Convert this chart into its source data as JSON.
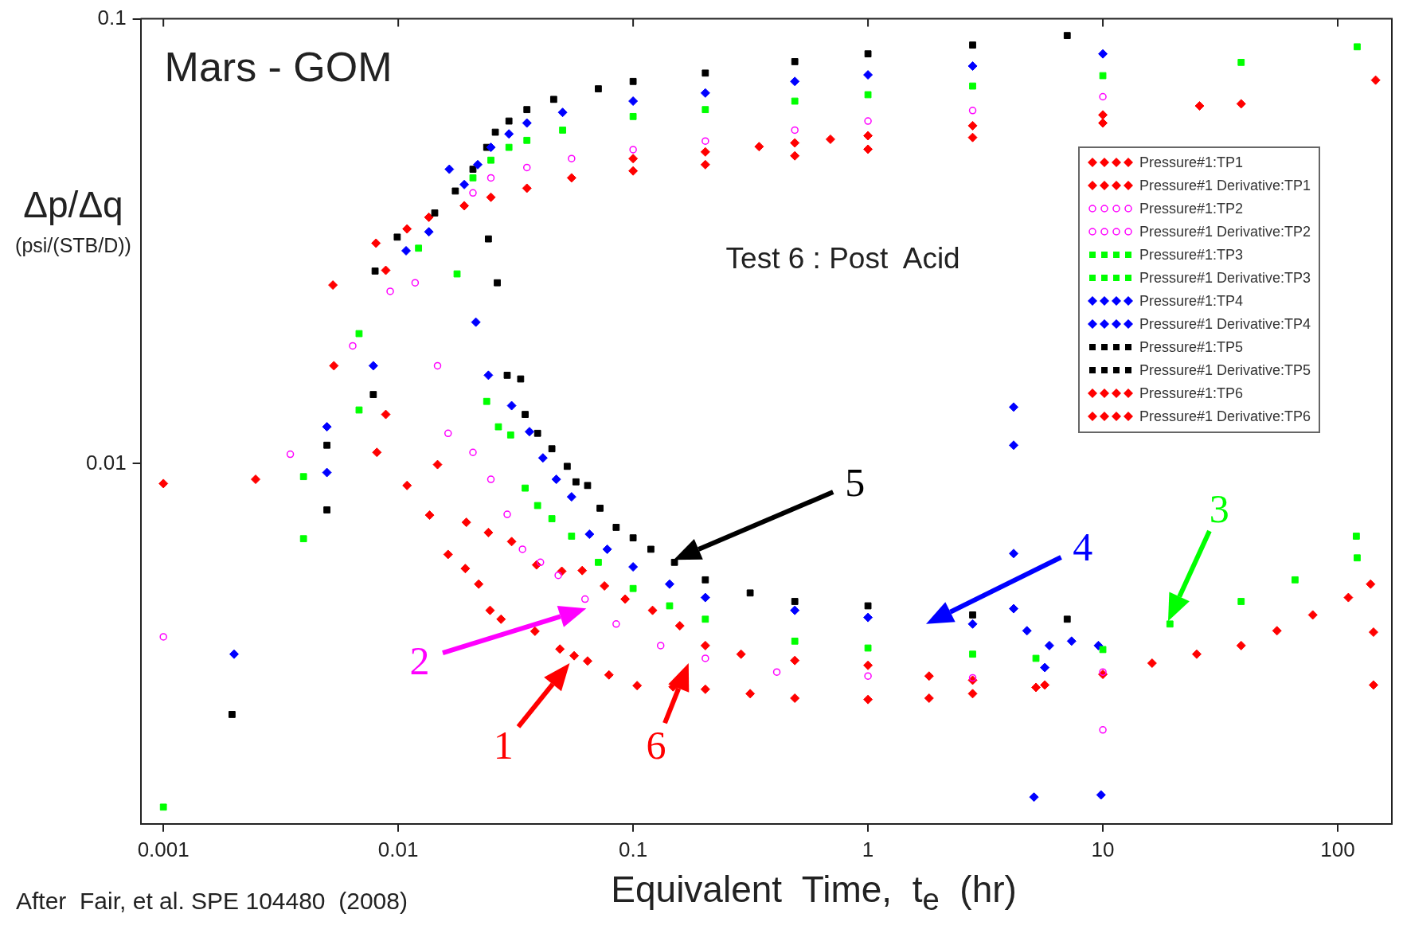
{
  "chart_data": {
    "type": "scatter",
    "xlabel": "Equivalent  Time,  t$_{e}$  (hr)",
    "ylabel": "Δp/Δq (psi/(STB/D))",
    "annotations": [
      "Mars - GOM",
      "Test 6 : Post  Acid",
      "After  Fair, et al. SPE 104480  (2008)",
      "1",
      "2",
      "3",
      "4",
      "5",
      "6"
    ],
    "log": "xy",
    "xlim": [
      0.0008,
      170
    ],
    "ylim": [
      0.00155,
      0.1
    ],
    "xticks": [
      0.001,
      0.01,
      0.1,
      1,
      10,
      100
    ],
    "yticks": [
      0.01,
      0.1
    ],
    "grid": false,
    "legend": "top right",
    "series": [
      {
        "name": "Pressure#1:TP1",
        "color": "#ff0000",
        "marker": "diamond",
        "x": [
          0.1,
          0.203,
          0.344,
          0.488,
          0.692,
          1,
          2.79,
          10,
          25.8
        ],
        "values": [
          0.0485,
          0.0502,
          0.0516,
          0.0526,
          0.0536,
          0.0546,
          0.0575,
          0.0608,
          0.0637
        ]
      },
      {
        "name": "Pressure#1 Derivative:TP1",
        "color": "#ff0000",
        "marker": "diamond",
        "x": [
          0.001,
          0.00247,
          0.00532,
          0.00811,
          0.0109,
          0.0136,
          0.0163,
          0.0193,
          0.022,
          0.0246,
          0.0274,
          0.0382,
          0.0488,
          0.0561,
          0.064,
          0.0789,
          0.104,
          0.148,
          0.203,
          0.315,
          0.488,
          1,
          1.82,
          2.79,
          5.19
        ],
        "values": [
          0.00902,
          0.00922,
          0.0166,
          0.0106,
          0.00893,
          0.00766,
          0.00625,
          0.00581,
          0.00536,
          0.00468,
          0.00447,
          0.0042,
          0.00383,
          0.0037,
          0.0036,
          0.00335,
          0.00317,
          0.00315,
          0.00311,
          0.00304,
          0.00297,
          0.00295,
          0.00297,
          0.00304,
          0.00314
        ]
      },
      {
        "name": "Pressure#1:TP2",
        "color": "#ff00ff",
        "marker": "circle",
        "x": [
          0.0208,
          0.0248,
          0.0353,
          0.0547,
          0.1,
          0.203,
          0.488,
          1,
          2.79,
          10
        ],
        "values": [
          0.0406,
          0.0439,
          0.0463,
          0.0485,
          0.0508,
          0.0531,
          0.0562,
          0.0589,
          0.0622,
          0.0668
        ]
      },
      {
        "name": "Pressure#1 Derivative:TP2",
        "color": "#ff00ff",
        "marker": "circle",
        "x": [
          0.001,
          0.00347,
          0.0064,
          0.00924,
          0.0118,
          0.0147,
          0.0163,
          0.0208,
          0.0248,
          0.0291,
          0.0338,
          0.0403,
          0.048,
          0.0624,
          0.0847,
          0.131,
          0.203,
          0.409,
          1,
          2.79,
          10,
          10
        ],
        "values": [
          0.00408,
          0.0105,
          0.0184,
          0.0244,
          0.0255,
          0.0166,
          0.0117,
          0.0106,
          0.00922,
          0.00769,
          0.00642,
          0.006,
          0.00561,
          0.00496,
          0.00436,
          0.0039,
          0.00365,
          0.0034,
          0.00333,
          0.0033,
          0.0034,
          0.00252
        ]
      },
      {
        "name": "Pressure#1:TP3",
        "color": "#00ff00",
        "marker": "square",
        "x": [
          0.0208,
          0.0248,
          0.0296,
          0.0353,
          0.0501,
          0.1,
          0.203,
          0.488,
          1,
          2.79,
          10,
          38.8,
          121
        ],
        "values": [
          0.0439,
          0.0481,
          0.0514,
          0.0533,
          0.0562,
          0.0603,
          0.0625,
          0.0653,
          0.0675,
          0.0706,
          0.0745,
          0.0798,
          0.0865
        ]
      },
      {
        "name": "Pressure#1 Derivative:TP3",
        "color": "#00ff00",
        "marker": "square",
        "x": [
          0.001,
          0.00395,
          0.00395,
          0.00681,
          0.00681,
          0.0122,
          0.0178,
          0.0238,
          0.0267,
          0.0301,
          0.0347,
          0.0392,
          0.0451,
          0.0547,
          0.0711,
          0.1,
          0.143,
          0.203,
          0.488,
          1,
          2.79,
          5.19,
          10,
          19.3,
          38.8,
          65.8,
          121,
          120
        ],
        "values": [
          0.00169,
          0.00678,
          0.00935,
          0.0132,
          0.0196,
          0.0305,
          0.0267,
          0.0138,
          0.0121,
          0.0116,
          0.00881,
          0.00805,
          0.00752,
          0.00687,
          0.006,
          0.00524,
          0.00479,
          0.00447,
          0.00399,
          0.00385,
          0.00373,
          0.00365,
          0.00382,
          0.00436,
          0.0049,
          0.00548,
          0.00614,
          0.00687
        ]
      },
      {
        "name": "Pressure#1:TP4",
        "color": "#0000ff",
        "marker": "diamond",
        "x": [
          0.0135,
          0.0165,
          0.0191,
          0.0218,
          0.0248,
          0.0296,
          0.0353,
          0.0501,
          0.1,
          0.203,
          0.488,
          1,
          2.79,
          10
        ],
        "values": [
          0.0332,
          0.0459,
          0.0424,
          0.047,
          0.0514,
          0.0551,
          0.0583,
          0.0616,
          0.0653,
          0.0681,
          0.0723,
          0.0748,
          0.0783,
          0.0834
        ]
      },
      {
        "name": "Pressure#1 Derivative:TP4",
        "color": "#0000ff",
        "marker": "diamond",
        "x": [
          0.002,
          0.00497,
          0.00497,
          0.00783,
          0.0108,
          0.0214,
          0.0242,
          0.0304,
          0.0362,
          0.0413,
          0.0471,
          0.0547,
          0.0652,
          0.0776,
          0.1,
          0.143,
          0.203,
          0.488,
          1,
          2.79,
          4.17,
          4.17,
          4.17,
          4.17,
          4.75,
          5.09,
          5.66,
          5.92,
          7.36,
          9.57,
          9.82
        ],
        "values": [
          0.00373,
          0.00955,
          0.0121,
          0.0166,
          0.0301,
          0.0208,
          0.0158,
          0.0135,
          0.0118,
          0.0103,
          0.00922,
          0.00842,
          0.00694,
          0.00642,
          0.00586,
          0.00536,
          0.005,
          0.00468,
          0.00451,
          0.00436,
          0.0134,
          0.011,
          0.00628,
          0.00472,
          0.00421,
          0.00178,
          0.00348,
          0.0039,
          0.00399,
          0.0039,
          0.0018
        ]
      },
      {
        "name": "Pressure#1:TP5",
        "color": "#000000",
        "marker": "square",
        "x": [
          0.0099,
          0.0143,
          0.0175,
          0.0208,
          0.0238,
          0.0259,
          0.0296,
          0.0353,
          0.0459,
          0.0711,
          0.1,
          0.203,
          0.488,
          1,
          2.79,
          7.05
        ],
        "values": [
          0.0323,
          0.0366,
          0.041,
          0.0459,
          0.0514,
          0.0556,
          0.0589,
          0.0625,
          0.0659,
          0.0696,
          0.0723,
          0.0755,
          0.0801,
          0.0834,
          0.0873,
          0.0917
        ]
      },
      {
        "name": "Pressure#1 Derivative:TP5",
        "color": "#000000",
        "marker": "square",
        "x": [
          0.00196,
          0.00497,
          0.00497,
          0.00783,
          0.00797,
          0.0242,
          0.0264,
          0.0291,
          0.0332,
          0.0347,
          0.0392,
          0.0451,
          0.0524,
          0.0571,
          0.064,
          0.0723,
          0.0847,
          0.1,
          0.119,
          0.15,
          0.203,
          0.315,
          0.488,
          1,
          2.79,
          7.05
        ],
        "values": [
          0.00273,
          0.00787,
          0.011,
          0.0143,
          0.0271,
          0.032,
          0.0255,
          0.0158,
          0.0155,
          0.0129,
          0.0117,
          0.0108,
          0.00986,
          0.0091,
          0.00893,
          0.00794,
          0.00719,
          0.00681,
          0.00642,
          0.006,
          0.00548,
          0.00512,
          0.0049,
          0.00479,
          0.00457,
          0.00447
        ]
      },
      {
        "name": "Pressure#1:TP6",
        "color": "#ff0000",
        "marker": "diamond",
        "x": [
          0.0109,
          0.0135,
          0.0191,
          0.0248,
          0.0353,
          0.0547,
          0.1,
          0.203,
          0.488,
          1,
          2.79,
          10,
          38.8,
          145
        ],
        "values": [
          0.0337,
          0.0358,
          0.038,
          0.0397,
          0.0416,
          0.0439,
          0.0455,
          0.047,
          0.0492,
          0.0509,
          0.0541,
          0.0583,
          0.0644,
          0.0728
        ]
      },
      {
        "name": "Pressure#1 Derivative:TP6",
        "color": "#ff0000",
        "marker": "diamond",
        "x": [
          0.00527,
          0.00804,
          0.00885,
          0.00885,
          0.0147,
          0.0195,
          0.0242,
          0.0304,
          0.0388,
          0.0497,
          0.0607,
          0.0755,
          0.0925,
          0.121,
          0.158,
          0.203,
          0.288,
          0.488,
          1,
          1.82,
          2.79,
          5.66,
          10,
          16.2,
          25.1,
          38.8,
          55.1,
          78.3,
          111,
          138,
          142,
          142
        ],
        "values": [
          0.0252,
          0.0313,
          0.0272,
          0.0129,
          0.00995,
          0.00738,
          0.007,
          0.00668,
          0.00592,
          0.00573,
          0.00575,
          0.00531,
          0.00496,
          0.00468,
          0.00432,
          0.0039,
          0.00373,
          0.00361,
          0.00352,
          0.00333,
          0.00326,
          0.00318,
          0.00336,
          0.00356,
          0.00373,
          0.0039,
          0.00421,
          0.00457,
          0.005,
          0.00536,
          0.00418,
          0.00318
        ]
      }
    ]
  }
}
